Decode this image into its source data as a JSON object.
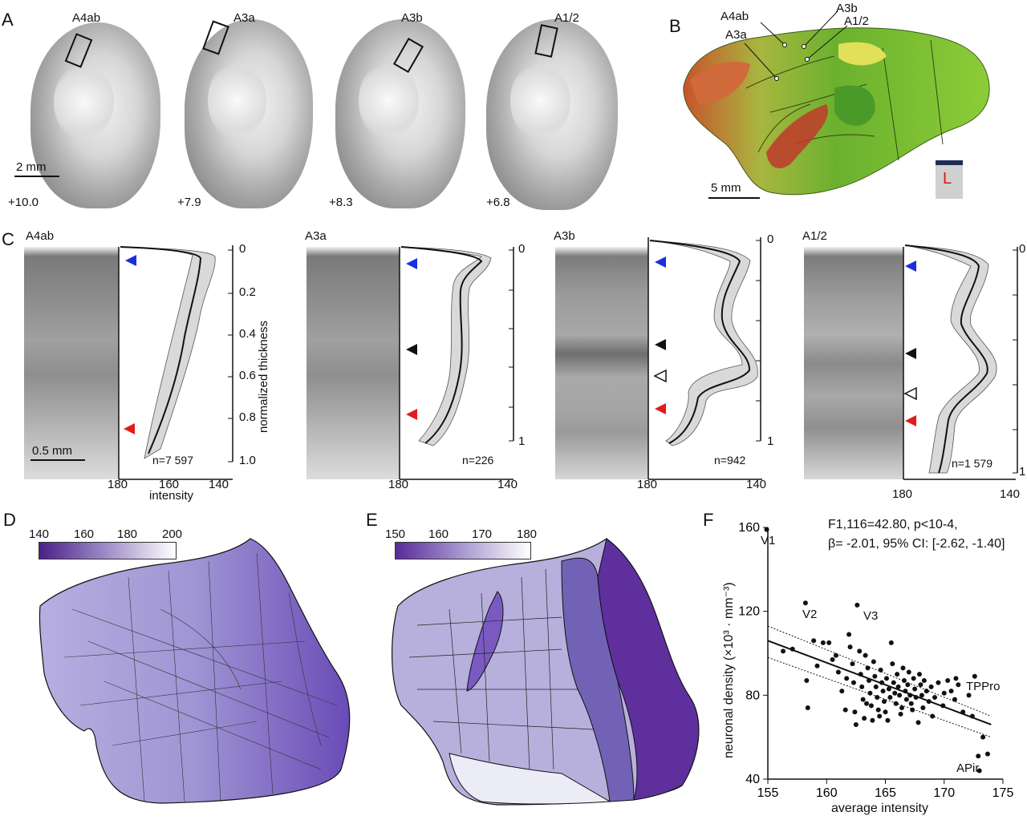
{
  "panels": {
    "A": {
      "label": "A",
      "regions": [
        "A4ab",
        "A3a",
        "A3b",
        "A1/2"
      ],
      "coordinates": [
        "+10.0",
        "+7.9",
        "+8.3",
        "+6.8"
      ],
      "scale_bar": "2 mm"
    },
    "B": {
      "label": "B",
      "regions": [
        "A4ab",
        "A3a",
        "A3b",
        "A1/2"
      ],
      "scale_bar": "5 mm",
      "orientation": "L"
    },
    "C": {
      "label": "C",
      "regions": [
        "A4ab",
        "A3a",
        "A3b",
        "A1/2"
      ],
      "n_values": [
        "n=7 597",
        "n=226",
        "n=942",
        "n=1 579"
      ],
      "y_ticks": [
        "0",
        "0.2",
        "0.4",
        "0.6",
        "0.8",
        "1.0"
      ],
      "y_ticks_short": [
        "0",
        "1"
      ],
      "x_ticks": [
        "180",
        "160",
        "140"
      ],
      "x_ticks_short": [
        "180",
        "140"
      ],
      "ylabel": "normalized thickness",
      "xlabel": "intensity",
      "scale_bar": "0.5 mm"
    },
    "D": {
      "label": "D",
      "colorbar_ticks": [
        "140",
        "160",
        "180",
        "200"
      ],
      "colors": {
        "low": "#4b2088",
        "high": "#ffffff"
      }
    },
    "E": {
      "label": "E",
      "colorbar_ticks": [
        "150",
        "160",
        "170",
        "180"
      ],
      "colors": {
        "low": "#5a2a98",
        "high": "#ffffff"
      }
    },
    "F": {
      "label": "F",
      "stats_line1": "F1,116=42.80, p<10-4,",
      "stats_line2": "β= -2.01, 95% CI: [-2.62, -1.40]",
      "labels": [
        "V1",
        "V2",
        "V3",
        "TPPro",
        "APir"
      ]
    }
  },
  "chart_data": {
    "type": "scatter",
    "xlabel": "average intensity",
    "ylabel": "neuronal density (×10³ · mm⁻³)",
    "xlim": [
      155,
      175
    ],
    "ylim": [
      40,
      160
    ],
    "x_ticks": [
      "155",
      "160",
      "165",
      "170",
      "175"
    ],
    "y_ticks": [
      "40",
      "80",
      "120",
      "160"
    ],
    "fit": {
      "x": [
        155,
        174
      ],
      "y": [
        106,
        66
      ]
    },
    "ci_upper": {
      "x": [
        155,
        174
      ],
      "y": [
        113,
        70
      ]
    },
    "ci_lower": {
      "x": [
        155,
        174
      ],
      "y": [
        98,
        60
      ]
    },
    "points": [
      {
        "x": 154.9,
        "y": 159
      },
      {
        "x": 156.3,
        "y": 101
      },
      {
        "x": 157.1,
        "y": 102
      },
      {
        "x": 158.2,
        "y": 124
      },
      {
        "x": 158.3,
        "y": 87
      },
      {
        "x": 158.4,
        "y": 74
      },
      {
        "x": 158.9,
        "y": 106
      },
      {
        "x": 159.2,
        "y": 94
      },
      {
        "x": 159.7,
        "y": 105
      },
      {
        "x": 160.2,
        "y": 105
      },
      {
        "x": 160.8,
        "y": 99
      },
      {
        "x": 161.0,
        "y": 91
      },
      {
        "x": 161.3,
        "y": 82
      },
      {
        "x": 161.6,
        "y": 73
      },
      {
        "x": 161.9,
        "y": 109
      },
      {
        "x": 162.0,
        "y": 103
      },
      {
        "x": 162.2,
        "y": 95
      },
      {
        "x": 162.3,
        "y": 86
      },
      {
        "x": 162.4,
        "y": 72
      },
      {
        "x": 162.5,
        "y": 66
      },
      {
        "x": 162.6,
        "y": 123
      },
      {
        "x": 162.8,
        "y": 101
      },
      {
        "x": 162.9,
        "y": 90
      },
      {
        "x": 163.0,
        "y": 84
      },
      {
        "x": 163.1,
        "y": 78
      },
      {
        "x": 163.2,
        "y": 69
      },
      {
        "x": 163.3,
        "y": 99
      },
      {
        "x": 163.5,
        "y": 93
      },
      {
        "x": 163.6,
        "y": 87
      },
      {
        "x": 163.7,
        "y": 81
      },
      {
        "x": 163.8,
        "y": 75
      },
      {
        "x": 163.9,
        "y": 68
      },
      {
        "x": 164.0,
        "y": 96
      },
      {
        "x": 164.1,
        "y": 89
      },
      {
        "x": 164.2,
        "y": 84
      },
      {
        "x": 164.3,
        "y": 79
      },
      {
        "x": 164.4,
        "y": 73
      },
      {
        "x": 164.6,
        "y": 92
      },
      {
        "x": 164.7,
        "y": 86
      },
      {
        "x": 164.8,
        "y": 82
      },
      {
        "x": 164.9,
        "y": 77
      },
      {
        "x": 165.0,
        "y": 72
      },
      {
        "x": 165.1,
        "y": 88
      },
      {
        "x": 165.3,
        "y": 83
      },
      {
        "x": 165.4,
        "y": 79
      },
      {
        "x": 165.5,
        "y": 105
      },
      {
        "x": 165.6,
        "y": 95
      },
      {
        "x": 165.7,
        "y": 86
      },
      {
        "x": 165.8,
        "y": 81
      },
      {
        "x": 165.9,
        "y": 76
      },
      {
        "x": 166.0,
        "y": 90
      },
      {
        "x": 166.1,
        "y": 84
      },
      {
        "x": 166.2,
        "y": 80
      },
      {
        "x": 166.4,
        "y": 74
      },
      {
        "x": 166.5,
        "y": 93
      },
      {
        "x": 166.6,
        "y": 87
      },
      {
        "x": 166.7,
        "y": 82
      },
      {
        "x": 166.8,
        "y": 78
      },
      {
        "x": 166.9,
        "y": 85
      },
      {
        "x": 167.0,
        "y": 91
      },
      {
        "x": 167.1,
        "y": 80
      },
      {
        "x": 167.2,
        "y": 76
      },
      {
        "x": 167.4,
        "y": 88
      },
      {
        "x": 167.5,
        "y": 83
      },
      {
        "x": 167.6,
        "y": 79
      },
      {
        "x": 167.8,
        "y": 67
      },
      {
        "x": 167.9,
        "y": 90
      },
      {
        "x": 168.0,
        "y": 85
      },
      {
        "x": 168.1,
        "y": 80
      },
      {
        "x": 168.3,
        "y": 87
      },
      {
        "x": 168.5,
        "y": 82
      },
      {
        "x": 168.7,
        "y": 77
      },
      {
        "x": 168.9,
        "y": 84
      },
      {
        "x": 169.2,
        "y": 79
      },
      {
        "x": 169.5,
        "y": 86
      },
      {
        "x": 169.9,
        "y": 75
      },
      {
        "x": 170.3,
        "y": 87
      },
      {
        "x": 170.6,
        "y": 82
      },
      {
        "x": 170.9,
        "y": 78
      },
      {
        "x": 171.2,
        "y": 85
      },
      {
        "x": 171.6,
        "y": 72
      },
      {
        "x": 172.1,
        "y": 80
      },
      {
        "x": 172.4,
        "y": 70
      },
      {
        "x": 172.6,
        "y": 89
      },
      {
        "x": 172.9,
        "y": 51
      },
      {
        "x": 173.0,
        "y": 44
      },
      {
        "x": 173.3,
        "y": 60
      },
      {
        "x": 173.7,
        "y": 52
      },
      {
        "x": 164.5,
        "y": 70
      },
      {
        "x": 163.4,
        "y": 76
      },
      {
        "x": 161.7,
        "y": 88
      },
      {
        "x": 160.5,
        "y": 97
      },
      {
        "x": 166.3,
        "y": 71
      },
      {
        "x": 165.2,
        "y": 68
      },
      {
        "x": 167.3,
        "y": 73
      },
      {
        "x": 168.2,
        "y": 74
      },
      {
        "x": 169.0,
        "y": 70
      },
      {
        "x": 170.0,
        "y": 81
      },
      {
        "x": 171.0,
        "y": 88
      }
    ]
  }
}
